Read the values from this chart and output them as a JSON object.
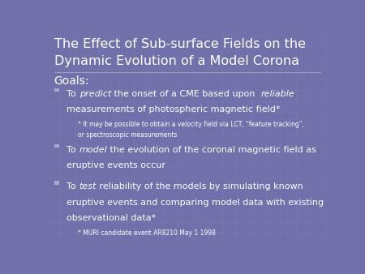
{
  "title_line1": "The Effect of Sub-surface Fields on the",
  "title_line2": "Dynamic Evolution of a Model Corona",
  "bg_color": "#7070aa",
  "title_color": "#ffffff",
  "text_color": "#ffffff",
  "goals_label": "Goals:",
  "bullet1_note1": "* It may be possible to obtain a velocity field via LCT, “feature tracking”,",
  "bullet1_note2": "or spectroscopic measurements",
  "bullet2_line2": "eruptive events occur",
  "bullet3_line2": "eruptive events and comparing model data with existing",
  "bullet3_line3": "observational data*",
  "bullet3_note": "* MURI candidate event AR8210 May 1 1998",
  "grid_color": "#8888bb"
}
